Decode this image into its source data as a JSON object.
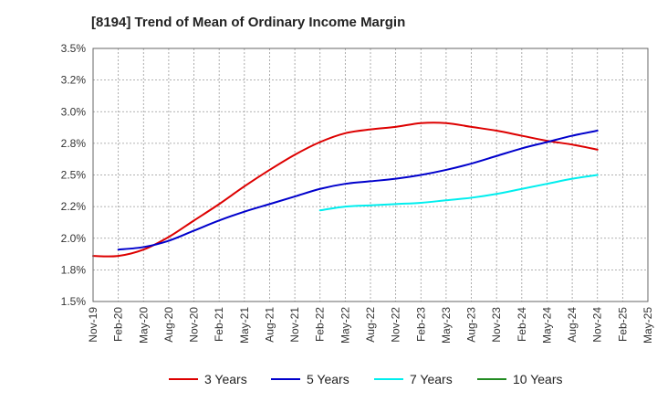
{
  "chart_data": {
    "type": "line",
    "title": "[8194]  Trend of Mean of Ordinary Income Margin",
    "xlabel": "",
    "ylabel": "",
    "y_unit": "%",
    "ylim": [
      1.5,
      3.5
    ],
    "yticks": [
      "1.5%",
      "1.8%",
      "2.0%",
      "2.2%",
      "2.5%",
      "2.8%",
      "3.0%",
      "3.2%",
      "3.5%"
    ],
    "categories": [
      "Nov-19",
      "Feb-20",
      "May-20",
      "Aug-20",
      "Nov-20",
      "Feb-21",
      "May-21",
      "Aug-21",
      "Nov-21",
      "Feb-22",
      "May-22",
      "Aug-22",
      "Nov-22",
      "Feb-23",
      "May-23",
      "Aug-23",
      "Nov-23",
      "Feb-24",
      "May-24",
      "Aug-24",
      "Nov-24",
      "Feb-25",
      "May-25"
    ],
    "grid": true,
    "legend_position": "bottom",
    "series": [
      {
        "name": "3 Years",
        "color": "#dd0000",
        "values": [
          1.86,
          1.86,
          1.91,
          2.01,
          2.14,
          2.27,
          2.41,
          2.54,
          2.66,
          2.76,
          2.83,
          2.86,
          2.88,
          2.91,
          2.91,
          2.88,
          2.85,
          2.81,
          2.77,
          2.74,
          2.7,
          null,
          null
        ]
      },
      {
        "name": "5 Years",
        "color": "#0000cc",
        "values": [
          null,
          1.91,
          1.93,
          1.98,
          2.06,
          2.14,
          2.21,
          2.27,
          2.33,
          2.39,
          2.43,
          2.45,
          2.47,
          2.5,
          2.54,
          2.59,
          2.65,
          2.71,
          2.76,
          2.81,
          2.85,
          null,
          null
        ]
      },
      {
        "name": "7 Years",
        "color": "#00eeee",
        "values": [
          null,
          null,
          null,
          null,
          null,
          null,
          null,
          null,
          null,
          2.22,
          2.25,
          2.26,
          2.27,
          2.28,
          2.3,
          2.32,
          2.35,
          2.39,
          2.43,
          2.47,
          2.5,
          null,
          null
        ]
      },
      {
        "name": "10 Years",
        "color": "#228b22",
        "values": [
          null,
          null,
          null,
          null,
          null,
          null,
          null,
          null,
          null,
          null,
          null,
          null,
          null,
          null,
          null,
          null,
          null,
          null,
          null,
          null,
          null,
          null,
          null
        ]
      }
    ]
  }
}
